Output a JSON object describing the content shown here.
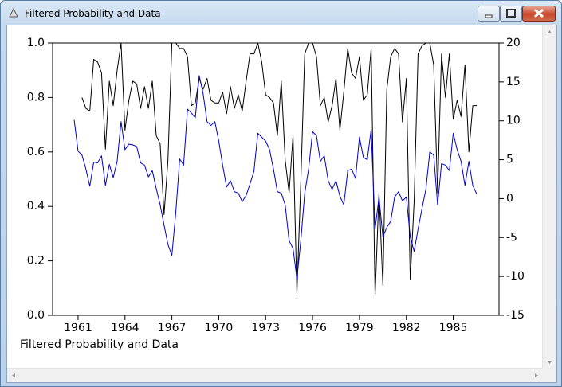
{
  "window": {
    "title": "Filtered Probability and Data"
  },
  "chart_data": {
    "type": "line",
    "caption": "Filtered Probability and Data",
    "x": [
      1960.75,
      1961,
      1961.25,
      1961.5,
      1961.75,
      1962,
      1962.25,
      1962.5,
      1962.75,
      1963,
      1963.25,
      1963.5,
      1963.75,
      1964,
      1964.25,
      1964.5,
      1964.75,
      1965,
      1965.25,
      1965.5,
      1965.75,
      1966,
      1966.25,
      1966.5,
      1966.75,
      1967,
      1967.25,
      1967.5,
      1967.75,
      1968,
      1968.25,
      1968.5,
      1968.75,
      1969,
      1969.25,
      1969.5,
      1969.75,
      1970,
      1970.25,
      1970.5,
      1970.75,
      1971,
      1971.25,
      1971.5,
      1971.75,
      1972,
      1972.25,
      1972.5,
      1972.75,
      1973,
      1973.25,
      1973.5,
      1973.75,
      1974,
      1974.25,
      1974.5,
      1974.75,
      1975,
      1975.25,
      1975.5,
      1975.75,
      1976,
      1976.25,
      1976.5,
      1976.75,
      1977,
      1977.25,
      1977.5,
      1977.75,
      1978,
      1978.25,
      1978.5,
      1978.75,
      1979,
      1979.25,
      1979.5,
      1979.75,
      1980,
      1980.25,
      1980.5,
      1980.75,
      1981,
      1981.25,
      1981.5,
      1981.75,
      1982,
      1982.25,
      1982.5,
      1982.75,
      1983,
      1983.25,
      1983.5,
      1983.75,
      1984,
      1984.25,
      1984.5,
      1984.75,
      1985,
      1985.25,
      1985.5,
      1985.75,
      1986,
      1986.25,
      1986.5
    ],
    "series": [
      {
        "color": "#000000",
        "axis": "y",
        "values": [
          null,
          null,
          0.8,
          0.76,
          0.75,
          0.94,
          0.93,
          0.89,
          0.61,
          0.86,
          0.77,
          0.9,
          1.0,
          0.68,
          0.79,
          0.86,
          0.85,
          0.76,
          0.84,
          0.76,
          0.86,
          0.66,
          0.63,
          0.37,
          0.57,
          1.0,
          1.0,
          0.98,
          0.98,
          0.95,
          0.77,
          0.78,
          0.87,
          0.83,
          0.87,
          0.79,
          0.78,
          0.78,
          0.82,
          0.74,
          0.84,
          0.76,
          0.81,
          0.75,
          0.86,
          0.96,
          0.96,
          1.0,
          0.93,
          0.81,
          0.8,
          0.78,
          0.66,
          0.86,
          0.57,
          0.45,
          0.66,
          0.08,
          0.49,
          0.96,
          1.0,
          1.0,
          0.95,
          0.77,
          0.8,
          0.71,
          0.77,
          0.87,
          0.68,
          0.82,
          0.98,
          0.89,
          0.87,
          0.95,
          0.79,
          0.81,
          0.98,
          0.07,
          0.45,
          0.11,
          0.83,
          0.95,
          0.98,
          0.96,
          0.71,
          0.87,
          0.13,
          0.42,
          0.96,
          0.99,
          1.0,
          1.0,
          0.92,
          0.45,
          0.96,
          0.8,
          0.96,
          0.72,
          0.79,
          0.73,
          0.92,
          0.6,
          0.77,
          0.77
        ]
      },
      {
        "color": "#0000cc",
        "axis": "y2",
        "values": [
          10.1,
          6.1,
          5.6,
          3.8,
          1.6,
          4.7,
          4.6,
          5.5,
          1.7,
          4.4,
          2.7,
          4.8,
          9.9,
          6.3,
          7.0,
          6.9,
          6.7,
          4.6,
          4.3,
          2.8,
          3.6,
          1.3,
          -0.8,
          -3.4,
          -5.9,
          -7.3,
          -1.8,
          5.1,
          4.3,
          11.5,
          11.0,
          10.4,
          15.8,
          13.5,
          9.9,
          9.4,
          9.9,
          7.4,
          4.3,
          1.5,
          2.3,
          0.9,
          0.7,
          -0.4,
          0.4,
          1.9,
          3.5,
          8.4,
          7.9,
          7.4,
          6.3,
          3.8,
          0.9,
          0.7,
          -0.8,
          -5.4,
          -6.4,
          -10.3,
          -5.4,
          0.7,
          3.8,
          8.6,
          8.1,
          4.8,
          5.5,
          2.3,
          1.2,
          2.3,
          0.3,
          -0.8,
          3.6,
          3.8,
          2.6,
          7.9,
          5.3,
          5.0,
          8.9,
          -3.9,
          0.2,
          -4.9,
          -3.7,
          -2.9,
          0.2,
          0.9,
          -0.3,
          0.2,
          -4.9,
          -6.8,
          -3.9,
          -1.3,
          1.2,
          6.0,
          5.6,
          -0.8,
          4.5,
          4.3,
          3.6,
          8.4,
          6.3,
          4.8,
          1.7,
          4.8,
          1.7,
          0.6
        ]
      }
    ],
    "xlim": [
      1959.37,
      1987.93
    ],
    "xticks": [
      1961,
      1964,
      1967,
      1970,
      1973,
      1976,
      1979,
      1982,
      1985
    ],
    "ylim": [
      0,
      1
    ],
    "yticks": [
      {
        "value": 0,
        "label": "0.0"
      },
      {
        "value": 0.2,
        "label": "0.2"
      },
      {
        "value": 0.4,
        "label": "0.4"
      },
      {
        "value": 0.6,
        "label": "0.6"
      },
      {
        "value": 0.8,
        "label": "0.8"
      },
      {
        "value": 1,
        "label": "1.0"
      }
    ],
    "y2lim": [
      -15,
      20
    ],
    "y2ticks": [
      -15,
      -10,
      -5,
      0,
      5,
      10,
      15,
      20
    ],
    "grid": false
  }
}
